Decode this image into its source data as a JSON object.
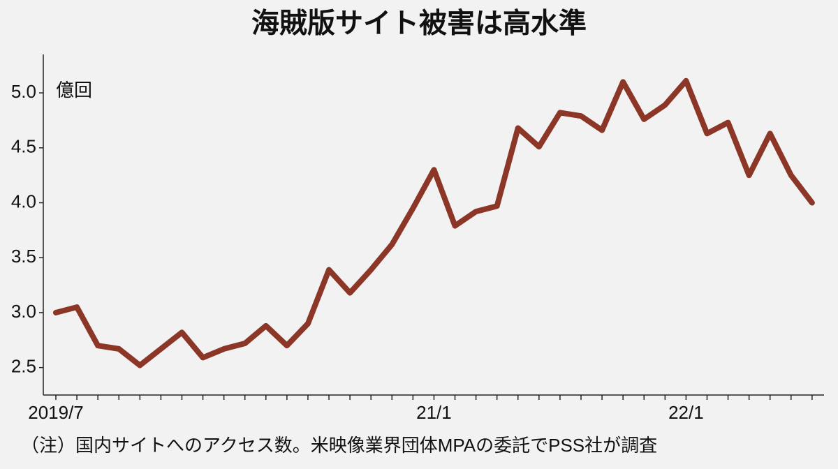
{
  "chart_data": {
    "type": "line",
    "title": "海賊版サイト被害は高水準",
    "y_unit": "億回",
    "note": "（注）国内サイトへのアクセス数。米映像業界団体MPAの委託でPSS社が調査",
    "categories": [
      "2019/7",
      null,
      null,
      null,
      null,
      null,
      null,
      null,
      null,
      null,
      null,
      null,
      null,
      null,
      null,
      null,
      null,
      null,
      "21/1",
      null,
      null,
      null,
      null,
      null,
      null,
      null,
      null,
      null,
      null,
      null,
      "22/1",
      null,
      null,
      null,
      null,
      null,
      null
    ],
    "series": [
      {
        "name": "アクセス数",
        "color": "#8b3626",
        "values": [
          3.0,
          3.05,
          2.7,
          2.67,
          2.52,
          2.67,
          2.82,
          2.59,
          2.67,
          2.72,
          2.88,
          2.7,
          2.9,
          3.39,
          3.18,
          3.39,
          3.62,
          3.95,
          4.3,
          3.79,
          3.92,
          3.97,
          4.68,
          4.51,
          4.82,
          4.79,
          4.66,
          5.1,
          4.76,
          4.89,
          5.11,
          4.63,
          4.73,
          4.25,
          4.63,
          4.25,
          4.0
        ]
      }
    ],
    "ylim": [
      2.25,
      5.35
    ],
    "yticks": [
      2.5,
      {
        "value": 3,
        "label": "3.0"
      },
      3.5,
      {
        "value": 4,
        "label": "4.0"
      },
      4.5,
      {
        "value": 5,
        "label": "5.0"
      }
    ],
    "grid": false
  }
}
